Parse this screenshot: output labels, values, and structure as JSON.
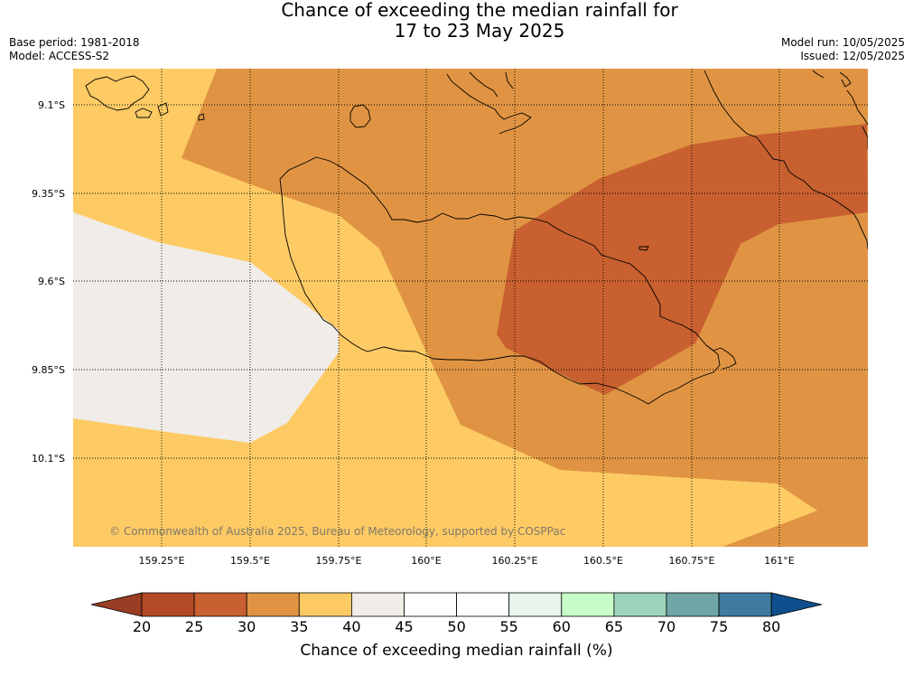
{
  "title_line1": "Chance of exceeding the median rainfall for",
  "title_line2": "17 to 23 May 2025",
  "base_period": "Base period: 1981-2018",
  "model": "Model: ACCESS-S2",
  "model_run": "Model run: 10/05/2025",
  "issued": "Issued: 12/05/2025",
  "copyright": "© Commonwealth of Australia 2025, Bureau of Meteorology, supported by COSPPac",
  "lat_labels": [
    "9.1°S",
    "9.35°S",
    "9.6°S",
    "9.85°S",
    "10.1°S"
  ],
  "lon_labels": [
    "159.25°E",
    "159.5°E",
    "159.75°E",
    "160°E",
    "160.25°E",
    "160.5°E",
    "160.75°E",
    "161°E"
  ],
  "colorbar": {
    "title": "Chance of exceeding median rainfall (%)",
    "ticks": [
      "20",
      "25",
      "30",
      "35",
      "40",
      "45",
      "50",
      "55",
      "60",
      "65",
      "70",
      "75",
      "80"
    ],
    "colors": [
      "#993d24",
      "#b24a25",
      "#c8602f",
      "#e09443",
      "#fdca64",
      "#f0ece7",
      "#ffffff",
      "#ffffff",
      "#e9f5ea",
      "#c7fdc8",
      "#9cd3bb",
      "#70a6a6",
      "#3e7b9f",
      "#0f4e8c"
    ]
  },
  "map_colors": {
    "c25_30": "#c8602f",
    "c30_35": "#e09443",
    "c35_40": "#fdca64",
    "c40_45": "#f0ece7"
  }
}
